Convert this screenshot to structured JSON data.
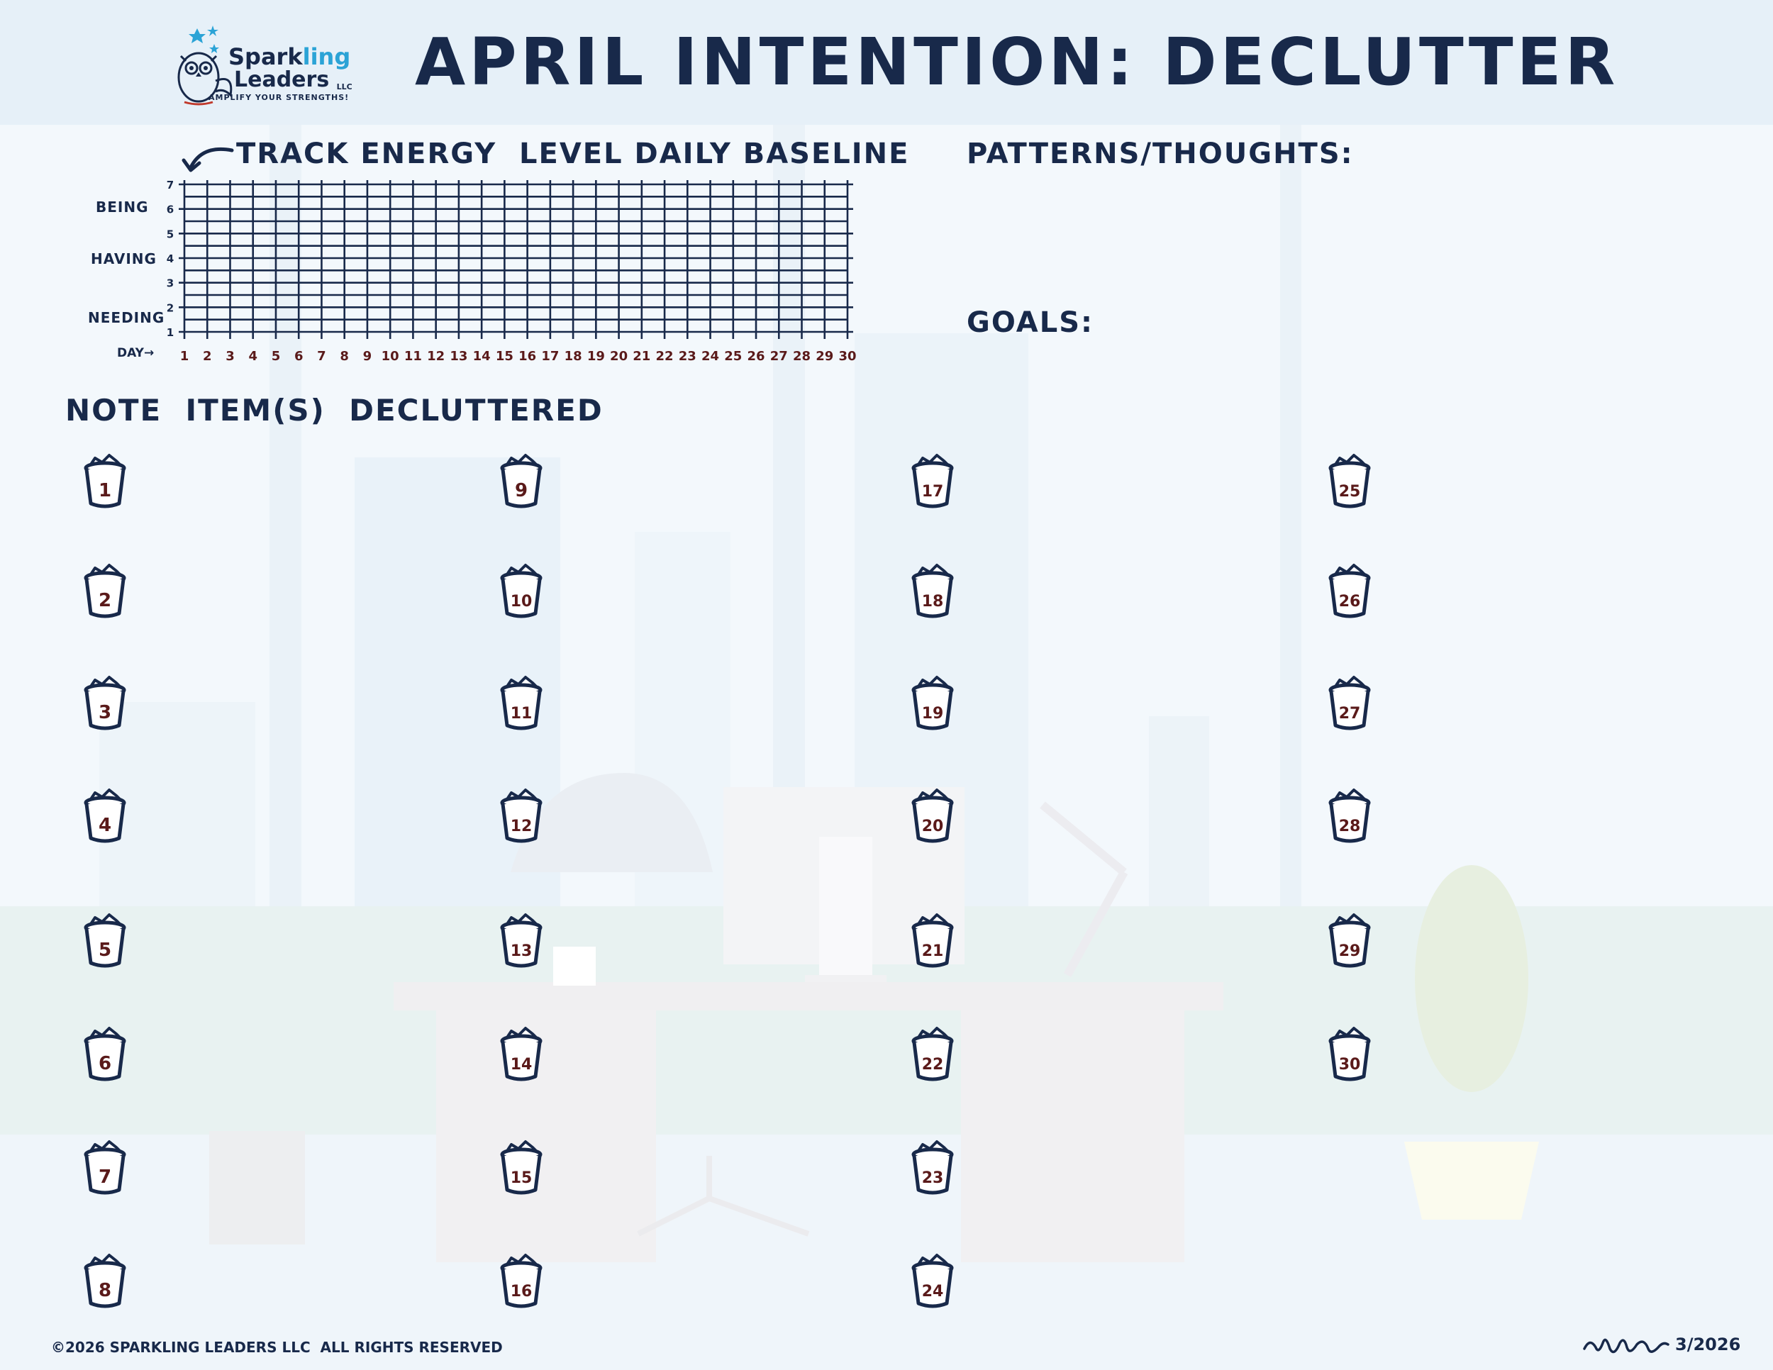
{
  "logo": {
    "name_part1": "Spark",
    "name_part2": "ling",
    "name_line2": "Leaders",
    "llc": "LLC",
    "tagline": "AMPLIFY YOUR STRENGTHS!"
  },
  "title": "APRIL INTENTION: DECLUTTER",
  "tracker": {
    "heading": "TRACK ENERGY  LEVEL DAILY BASELINE",
    "level_labels": [
      "BEING",
      "HAVING",
      "NEEDING"
    ],
    "day_label": "DAY→"
  },
  "chart_data": {
    "type": "table",
    "y_ticks": [
      "1",
      "2",
      "3",
      "4",
      "5",
      "6",
      "7"
    ],
    "x_ticks": [
      "1",
      "2",
      "3",
      "4",
      "5",
      "6",
      "7",
      "8",
      "9",
      "10",
      "11",
      "12",
      "13",
      "14",
      "15",
      "16",
      "17",
      "18",
      "19",
      "20",
      "21",
      "22",
      "23",
      "24",
      "25",
      "26",
      "27",
      "28",
      "29",
      "30"
    ],
    "ylim": [
      1,
      7
    ],
    "xlim": [
      1,
      30
    ],
    "grid": true
  },
  "patterns": {
    "heading": "PATTERNS/THOUGHTS:"
  },
  "goals": {
    "heading": "GOALS:"
  },
  "declutter": {
    "heading": "NOTE  ITEM(S)  DECLUTTERED",
    "bins": [
      "1",
      "2",
      "3",
      "4",
      "5",
      "6",
      "7",
      "8",
      "9",
      "10",
      "11",
      "12",
      "13",
      "14",
      "15",
      "16",
      "17",
      "18",
      "19",
      "20",
      "21",
      "22",
      "23",
      "24",
      "25",
      "26",
      "27",
      "28",
      "29",
      "30"
    ]
  },
  "footer": {
    "copyright": "©2026 SPARKLING LEADERS LLC  ALL RIGHTS RESERVED",
    "date": "3/2026"
  },
  "colors": {
    "ink": "#18294a",
    "accent": "#2ba3d6",
    "number_ink": "#5a1a1a",
    "background": "#f3f8fc"
  }
}
